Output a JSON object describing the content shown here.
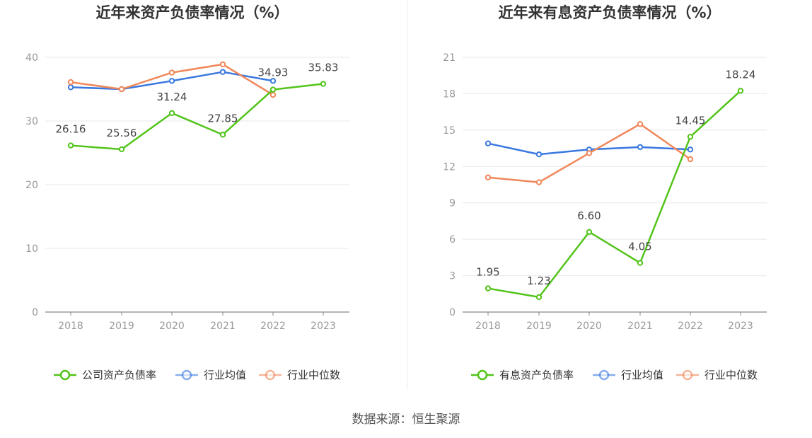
{
  "source_text": "数据来源：恒生聚源",
  "chart_data": [
    {
      "type": "line",
      "title": "近年来资产负债率情况（%）",
      "categories": [
        "2018",
        "2019",
        "2020",
        "2021",
        "2022",
        "2023"
      ],
      "ylim": [
        0,
        40
      ],
      "yticks": [
        "0",
        "10",
        "20",
        "30",
        "40"
      ],
      "grid": true,
      "legend": "bottom",
      "series": [
        {
          "name": "公司资产负债率",
          "color": "#52c41a",
          "values": [
            26.16,
            25.56,
            31.24,
            27.85,
            34.93,
            35.83
          ],
          "labels": [
            "26.16",
            "25.56",
            "31.24",
            "27.85",
            "34.93",
            "35.83"
          ]
        },
        {
          "name": "行业均值",
          "color": "#3a78e0",
          "values": [
            35.3,
            35.0,
            36.3,
            37.7,
            36.3,
            null
          ]
        },
        {
          "name": "行业中位数",
          "color": "#f0875a",
          "values": [
            36.1,
            35.0,
            37.6,
            38.9,
            34.1,
            null
          ]
        }
      ]
    },
    {
      "type": "line",
      "title": "近年来有息资产负债率情况（%）",
      "categories": [
        "2018",
        "2019",
        "2020",
        "2021",
        "2022",
        "2023"
      ],
      "ylim": [
        0,
        21
      ],
      "yticks": [
        "0",
        "3",
        "6",
        "9",
        "12",
        "15",
        "18",
        "21"
      ],
      "grid": true,
      "legend": "bottom",
      "series": [
        {
          "name": "有息资产负债率",
          "color": "#52c41a",
          "values": [
            1.95,
            1.23,
            6.6,
            4.05,
            14.45,
            18.24
          ],
          "labels": [
            "1.95",
            "1.23",
            "6.60",
            "4.05",
            "14.45",
            "18.24"
          ]
        },
        {
          "name": "行业均值",
          "color": "#3a78e0",
          "values": [
            13.9,
            13.0,
            13.4,
            13.6,
            13.4,
            null
          ]
        },
        {
          "name": "行业中位数",
          "color": "#f0875a",
          "values": [
            11.1,
            10.7,
            13.1,
            15.5,
            12.6,
            null
          ]
        }
      ]
    }
  ]
}
